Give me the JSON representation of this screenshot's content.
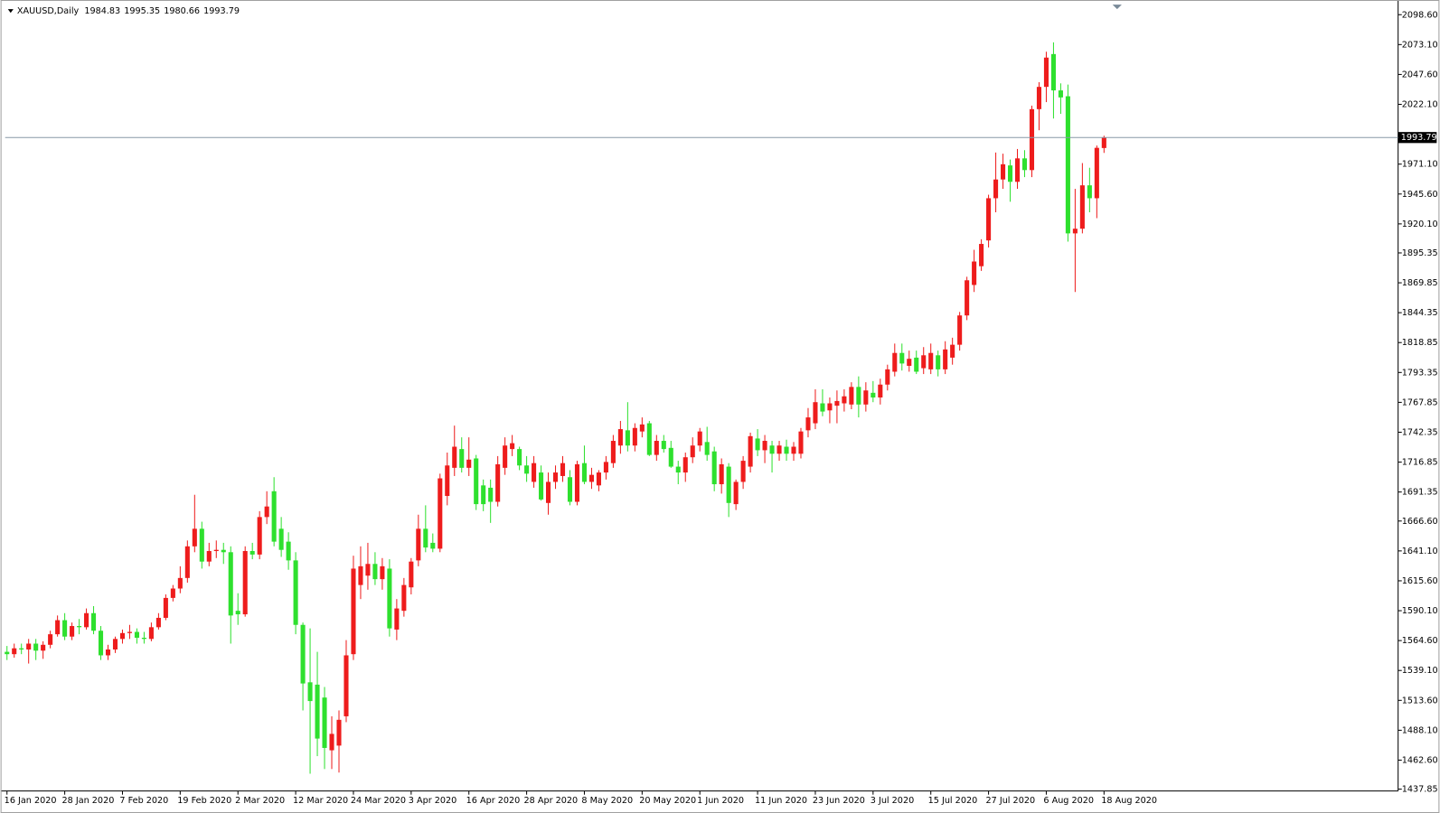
{
  "chart_data": {
    "type": "candlestick",
    "title": "XAUUSD,Daily",
    "header_ohlc": [
      1984.83,
      1995.35,
      1980.66,
      1993.79
    ],
    "last_price": 1993.79,
    "up_color": "#ee1c1c",
    "down_color": "#2ee02e",
    "categories": [
      "16 Jan 2020",
      null,
      null,
      null,
      null,
      null,
      null,
      null,
      "28 Jan 2020",
      null,
      null,
      null,
      null,
      null,
      null,
      null,
      "7 Feb 2020",
      null,
      null,
      null,
      null,
      null,
      null,
      null,
      "19 Feb 2020",
      null,
      null,
      null,
      null,
      null,
      null,
      null,
      "2 Mar 2020",
      null,
      null,
      null,
      null,
      null,
      null,
      null,
      "12 Mar 2020",
      null,
      null,
      null,
      null,
      null,
      null,
      null,
      "24 Mar 2020",
      null,
      null,
      null,
      null,
      null,
      null,
      null,
      "3 Apr 2020",
      null,
      null,
      null,
      null,
      null,
      null,
      null,
      "16 Apr 2020",
      null,
      null,
      null,
      null,
      null,
      null,
      null,
      "28 Apr 2020",
      null,
      null,
      null,
      null,
      null,
      null,
      null,
      "8 May 2020",
      null,
      null,
      null,
      null,
      null,
      null,
      null,
      "20 May 2020",
      null,
      null,
      null,
      null,
      null,
      null,
      null,
      "1 Jun 2020",
      null,
      null,
      null,
      null,
      null,
      null,
      null,
      "11 Jun 2020",
      null,
      null,
      null,
      null,
      null,
      null,
      null,
      "23 Jun 2020",
      null,
      null,
      null,
      null,
      null,
      null,
      null,
      "3 Jul 2020",
      null,
      null,
      null,
      null,
      null,
      null,
      null,
      "15 Jul 2020",
      null,
      null,
      null,
      null,
      null,
      null,
      null,
      "27 Jul 2020",
      null,
      null,
      null,
      null,
      null,
      null,
      null,
      "6 Aug 2020",
      null,
      null,
      null,
      null,
      null,
      null,
      null,
      "18 Aug 2020"
    ],
    "open": [
      1555,
      1553,
      1558,
      1557,
      1562,
      1556,
      1561,
      1570,
      1582,
      1568,
      1577,
      1576,
      1588,
      1573,
      1552,
      1557,
      1566,
      1571,
      1572,
      1567,
      1566,
      1576,
      1584,
      1601,
      1609,
      1618,
      1645,
      1660,
      1632,
      1641,
      1642,
      1640,
      1590,
      1587,
      1641,
      1638,
      1670,
      1692,
      1660,
      1649,
      1633,
      1578,
      1529,
      1527,
      1516,
      1471,
      1475,
      1500,
      1553,
      1612,
      1620,
      1630,
      1617,
      1626,
      1574,
      1590,
      1610,
      1633,
      1660,
      1648,
      1643,
      1688,
      1712,
      1728,
      1712,
      1720,
      1697,
      1695,
      1683,
      1712,
      1728,
      1728,
      1714,
      1700,
      1708,
      1682,
      1700,
      1705,
      1704,
      1683,
      1716,
      1700,
      1697,
      1708,
      1716,
      1731,
      1744,
      1731,
      1743,
      1750,
      1723,
      1735,
      1729,
      1713,
      1708,
      1721,
      1731,
      1734,
      1726,
      1698,
      1713,
      1681,
      1700,
      1713,
      1737,
      1727,
      1731,
      1724,
      1730,
      1724,
      1724,
      1744,
      1750,
      1767,
      1761,
      1765,
      1767,
      1766,
      1781,
      1766,
      1776,
      1772,
      1783,
      1794,
      1810,
      1799,
      1806,
      1797,
      1796,
      1808,
      1796,
      1806,
      1817,
      1842,
      1868,
      1884,
      1906,
      1942,
      1958,
      1970,
      1956,
      1976,
      1966,
      2018,
      2037,
      2065,
      2034,
      2029,
      1912,
      1916,
      1953,
      1942,
      1984.83
    ],
    "high": [
      1560,
      1562,
      1562,
      1566,
      1566,
      1564,
      1573,
      1586,
      1588,
      1580,
      1583,
      1592,
      1594,
      1577,
      1561,
      1568,
      1574,
      1578,
      1575,
      1572,
      1580,
      1588,
      1604,
      1612,
      1628,
      1650,
      1689,
      1666,
      1648,
      1650,
      1648,
      1645,
      1605,
      1645,
      1648,
      1675,
      1692,
      1704,
      1670,
      1657,
      1640,
      1580,
      1575,
      1555,
      1525,
      1500,
      1505,
      1565,
      1637,
      1645,
      1648,
      1640,
      1635,
      1634,
      1600,
      1618,
      1635,
      1672,
      1680,
      1656,
      1707,
      1725,
      1748,
      1738,
      1738,
      1723,
      1702,
      1702,
      1722,
      1738,
      1740,
      1730,
      1722,
      1722,
      1714,
      1708,
      1714,
      1722,
      1710,
      1718,
      1731,
      1712,
      1710,
      1722,
      1740,
      1752,
      1768,
      1750,
      1755,
      1752,
      1740,
      1740,
      1735,
      1718,
      1725,
      1738,
      1746,
      1747,
      1730,
      1720,
      1716,
      1702,
      1722,
      1742,
      1745,
      1740,
      1735,
      1735,
      1736,
      1734,
      1746,
      1763,
      1779,
      1779,
      1772,
      1778,
      1779,
      1785,
      1790,
      1785,
      1786,
      1788,
      1800,
      1818,
      1818,
      1812,
      1812,
      1815,
      1818,
      1812,
      1820,
      1823,
      1845,
      1875,
      1898,
      1907,
      1945,
      1981,
      1980,
      1975,
      1984,
      1983,
      2021,
      2041,
      2067,
      2075,
      2040,
      2039,
      1950,
      1972,
      1968,
      1987,
      1995.35
    ],
    "low": [
      1548,
      1550,
      1553,
      1545,
      1548,
      1549,
      1558,
      1568,
      1565,
      1565,
      1570,
      1574,
      1570,
      1548,
      1548,
      1554,
      1562,
      1566,
      1562,
      1562,
      1564,
      1574,
      1582,
      1598,
      1605,
      1614,
      1640,
      1626,
      1628,
      1635,
      1630,
      1562,
      1578,
      1585,
      1634,
      1634,
      1664,
      1645,
      1636,
      1625,
      1570,
      1505,
      1451,
      1466,
      1455,
      1455,
      1452,
      1495,
      1548,
      1600,
      1608,
      1612,
      1608,
      1568,
      1565,
      1585,
      1604,
      1628,
      1640,
      1640,
      1640,
      1680,
      1705,
      1708,
      1705,
      1676,
      1675,
      1665,
      1679,
      1706,
      1722,
      1710,
      1700,
      1695,
      1684,
      1672,
      1694,
      1700,
      1680,
      1680,
      1698,
      1694,
      1692,
      1702,
      1712,
      1724,
      1726,
      1726,
      1738,
      1722,
      1718,
      1725,
      1712,
      1698,
      1700,
      1716,
      1726,
      1718,
      1692,
      1690,
      1670,
      1676,
      1694,
      1708,
      1722,
      1716,
      1708,
      1718,
      1718,
      1718,
      1720,
      1738,
      1745,
      1756,
      1750,
      1750,
      1760,
      1762,
      1755,
      1760,
      1768,
      1766,
      1778,
      1790,
      1795,
      1794,
      1792,
      1792,
      1792,
      1790,
      1792,
      1800,
      1812,
      1838,
      1862,
      1880,
      1900,
      1930,
      1950,
      1939,
      1950,
      1960,
      1960,
      2000,
      2024,
      2010,
      2014,
      1905,
      1862,
      1912,
      1930,
      1925,
      1980.66
    ],
    "close": [
      1553,
      1558,
      1557,
      1562,
      1556,
      1561,
      1570,
      1582,
      1568,
      1577,
      1576,
      1588,
      1573,
      1552,
      1557,
      1566,
      1571,
      1572,
      1567,
      1566,
      1576,
      1584,
      1601,
      1609,
      1618,
      1645,
      1660,
      1632,
      1641,
      1642,
      1640,
      1586,
      1587,
      1641,
      1638,
      1670,
      1679,
      1649,
      1642,
      1633,
      1578,
      1528,
      1513,
      1481,
      1473,
      1485,
      1497,
      1552,
      1626,
      1628,
      1630,
      1617,
      1628,
      1575,
      1592,
      1612,
      1632,
      1660,
      1644,
      1643,
      1703,
      1714,
      1730,
      1712,
      1719,
      1681,
      1681,
      1683,
      1715,
      1731,
      1733,
      1714,
      1707,
      1716,
      1685,
      1700,
      1708,
      1716,
      1683,
      1715,
      1700,
      1706,
      1708,
      1717,
      1735,
      1745,
      1731,
      1746,
      1749,
      1723,
      1735,
      1728,
      1713,
      1708,
      1721,
      1731,
      1743,
      1723,
      1698,
      1715,
      1682,
      1700,
      1718,
      1739,
      1727,
      1735,
      1724,
      1731,
      1724,
      1730,
      1743,
      1755,
      1768,
      1760,
      1767,
      1769,
      1773,
      1781,
      1766,
      1778,
      1772,
      1783,
      1796,
      1810,
      1801,
      1805,
      1794,
      1808,
      1810,
      1796,
      1813,
      1817,
      1842,
      1872,
      1888,
      1903,
      1942,
      1958,
      1971,
      1956,
      1976,
      1966,
      2018,
      2037,
      2062,
      2034,
      2028,
      1912,
      1916,
      1953,
      1942,
      1985,
      1993.79
    ],
    "ylim": [
      1436.28,
      2109.56
    ],
    "yticks": [
      {
        "value": 2098.6,
        "label": "2098.60"
      },
      {
        "value": 2073.1,
        "label": "2073.10"
      },
      {
        "value": 2047.6,
        "label": "2047.60"
      },
      {
        "value": 2022.1,
        "label": "2022.10"
      },
      {
        "value": 1971.1,
        "label": "1971.10"
      },
      {
        "value": 1945.6,
        "label": "1945.60"
      },
      {
        "value": 1920.1,
        "label": "1920.10"
      },
      {
        "value": 1895.35,
        "label": "1895.35"
      },
      {
        "value": 1869.85,
        "label": "1869.85"
      },
      {
        "value": 1844.35,
        "label": "1844.35"
      },
      {
        "value": 1818.85,
        "label": "1818.85"
      },
      {
        "value": 1793.35,
        "label": "1793.35"
      },
      {
        "value": 1767.85,
        "label": "1767.85"
      },
      {
        "value": 1742.35,
        "label": "1742.35"
      },
      {
        "value": 1716.85,
        "label": "1716.85"
      },
      {
        "value": 1691.35,
        "label": "1691.35"
      },
      {
        "value": 1666.6,
        "label": "1666.60"
      },
      {
        "value": 1641.1,
        "label": "1641.10"
      },
      {
        "value": 1615.6,
        "label": "1615.60"
      },
      {
        "value": 1590.1,
        "label": "1590.10"
      },
      {
        "value": 1564.6,
        "label": "1564.60"
      },
      {
        "value": 1539.1,
        "label": "1539.10"
      },
      {
        "value": 1513.6,
        "label": "1513.60"
      },
      {
        "value": 1488.1,
        "label": "1488.10"
      },
      {
        "value": 1462.6,
        "label": "1462.60"
      },
      {
        "value": 1437.85,
        "label": "1437.85"
      }
    ],
    "grid": false
  }
}
